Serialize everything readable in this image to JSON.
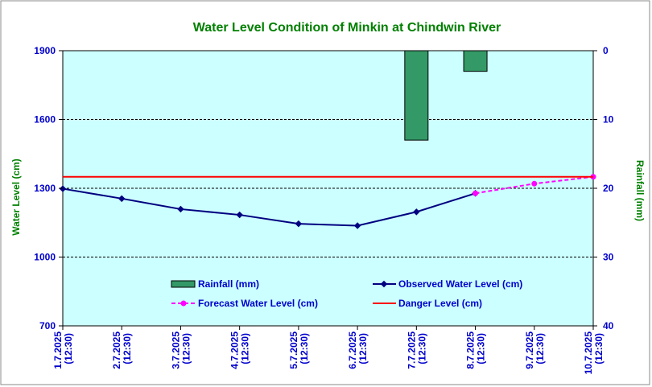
{
  "chart_data": {
    "type": "line",
    "title": "Water Level Condition of Minkin at Chindwin River",
    "ylabel": "Water Level (cm)",
    "y2label": "Rainfall (mm)",
    "ylim": [
      700,
      1900
    ],
    "yticks": [
      700,
      1000,
      1300,
      1600,
      1900
    ],
    "y2lim": [
      0,
      40
    ],
    "y2ticks": [
      0,
      10,
      20,
      30,
      40
    ],
    "y2_inverted": true,
    "grid": true,
    "legend_position": "bottom-center",
    "categories": [
      [
        "1.7.2025",
        "(12:30)"
      ],
      [
        "2.7.2025",
        "(12:30)"
      ],
      [
        "3.7.2025",
        "(12:30)"
      ],
      [
        "4.7.2025",
        "(12:30)"
      ],
      [
        "5.7.2025",
        "(12:30)"
      ],
      [
        "6.7.2025",
        "(12:30)"
      ],
      [
        "7.7.2025",
        "(12:30)"
      ],
      [
        "8.7.2025",
        "(12:30)"
      ],
      [
        "9.7.2025",
        "(12:30)"
      ],
      [
        "10.7.2025",
        "(12:30)"
      ]
    ],
    "series": [
      {
        "name": "Rainfall (mm)",
        "kind": "bar",
        "axis": "right",
        "color": "#339966",
        "values": [
          null,
          null,
          null,
          null,
          null,
          null,
          13,
          3,
          null,
          null
        ]
      },
      {
        "name": "Observed Water Level (cm)",
        "kind": "line",
        "axis": "left",
        "color": "#000080",
        "marker": "diamond",
        "values": [
          1298,
          1255,
          1209,
          1184,
          1145,
          1137,
          1197,
          1278,
          null,
          null
        ]
      },
      {
        "name": "Forecast Water Level (cm)",
        "kind": "line",
        "axis": "left",
        "color": "#ff00ff",
        "dashed": true,
        "marker": "circle",
        "values": [
          null,
          null,
          null,
          null,
          null,
          null,
          null,
          1278,
          1320,
          1350
        ]
      },
      {
        "name": "Danger Level (cm)",
        "kind": "line",
        "axis": "left",
        "color": "#ff0000",
        "values": [
          1350,
          1350,
          1350,
          1350,
          1350,
          1350,
          1350,
          1350,
          1350,
          1350
        ]
      }
    ],
    "colors": {
      "plot_background": "#ccffff",
      "title": "#008000",
      "left_axis": "#0000cc",
      "right_axis": "#008000",
      "left_axis_title": "#008000",
      "legend_text": "#0000cc"
    }
  }
}
